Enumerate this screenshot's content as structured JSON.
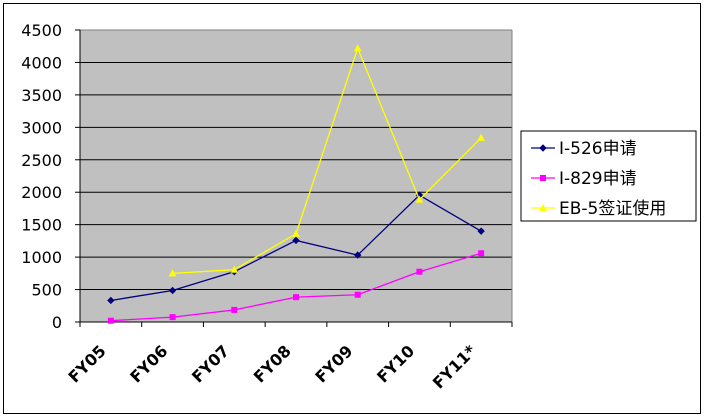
{
  "chart_data": {
    "type": "line",
    "title": "",
    "xlabel": "",
    "ylabel": "",
    "categories": [
      "FY05",
      "FY06",
      "FY07",
      "FY08",
      "FY09",
      "FY10",
      "FY11*"
    ],
    "ylim": [
      0,
      4500
    ],
    "yticks": [
      0,
      500,
      1000,
      1500,
      2000,
      2500,
      3000,
      3500,
      4000,
      4500
    ],
    "grid": true,
    "plot_background": "#c0c0c0",
    "legend_position": "right",
    "series": [
      {
        "name": "I-526申请",
        "color": "#000080",
        "marker": "diamond",
        "values": [
          332,
          486,
          776,
          1257,
          1031,
          1955,
          1400
        ]
      },
      {
        "name": "I-829申请",
        "color": "#ff00ff",
        "marker": "square",
        "values": [
          20,
          75,
          186,
          383,
          420,
          775,
          1060
        ]
      },
      {
        "name": "EB-5签证使用",
        "color": "#ffff00",
        "marker": "triangle",
        "values": [
          null,
          749,
          806,
          1360,
          4218,
          1885,
          2838
        ]
      }
    ]
  }
}
